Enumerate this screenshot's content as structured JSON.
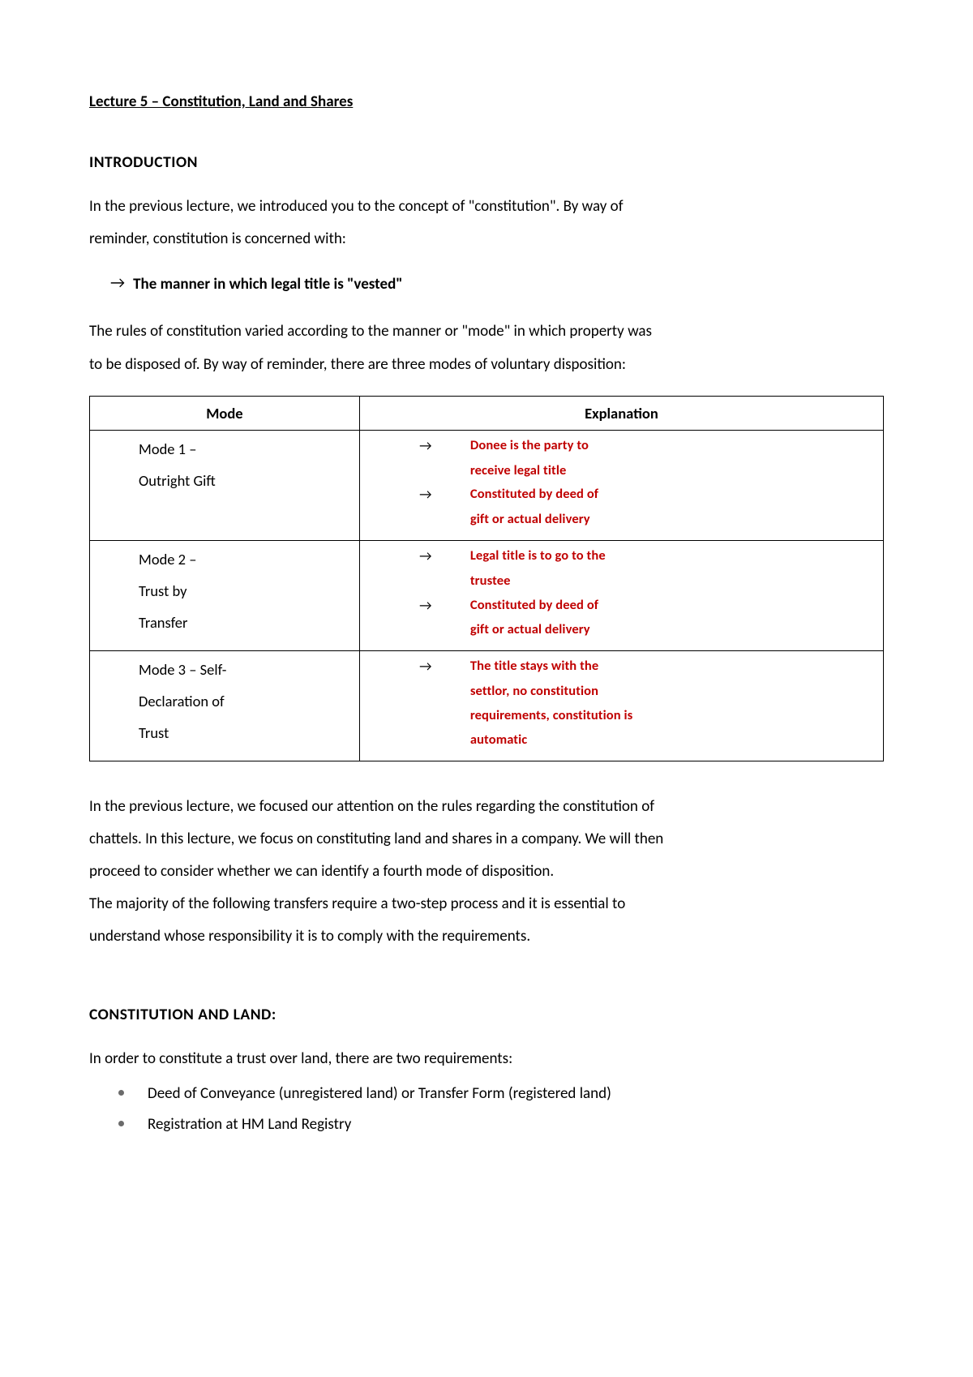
{
  "lecture_title": "Lecture 5 – Constitution, Land and Shares",
  "intro": {
    "heading": "INTRODUCTION",
    "p1a": "In the previous lecture, we introduced you to the concept of \"constitution\". By way of",
    "p1b": "reminder, constitution is concerned with:",
    "arrow_item": "The manner in which legal title is \"vested\"",
    "p2a": "The rules of constitution varied according to the manner or \"mode\" in which property was",
    "p2b": "to be disposed of. By way of reminder, there are three modes of voluntary disposition:"
  },
  "table": {
    "headers": {
      "mode": "Mode",
      "explanation": "Explanation"
    },
    "rows": [
      {
        "mode_l1": "Mode 1 –",
        "mode_l2": "Outright Gift",
        "mode_l3": "",
        "exp": [
          {
            "arrow": true,
            "text": "Donee is the party to"
          },
          {
            "arrow": false,
            "text": "receive legal title"
          },
          {
            "arrow": true,
            "text": "Constituted by deed of"
          },
          {
            "arrow": false,
            "text": "gift or actual delivery"
          }
        ]
      },
      {
        "mode_l1": "Mode 2 –",
        "mode_l2": "Trust by",
        "mode_l3": "Transfer",
        "exp": [
          {
            "arrow": true,
            "text": "Legal title is to go to the"
          },
          {
            "arrow": false,
            "text": "trustee"
          },
          {
            "arrow": true,
            "text": "Constituted by deed of"
          },
          {
            "arrow": false,
            "text": "gift or actual delivery"
          }
        ]
      },
      {
        "mode_l1": "Mode 3 – Self-",
        "mode_l2": "Declaration of",
        "mode_l3": "Trust",
        "exp": [
          {
            "arrow": true,
            "text": "The title stays with the"
          },
          {
            "arrow": false,
            "text": "settlor, no constitution"
          },
          {
            "arrow": false,
            "text": "requirements, constitution is"
          },
          {
            "arrow": false,
            "text": "automatic"
          }
        ]
      }
    ]
  },
  "mid": {
    "p1": "In the previous lecture, we focused our attention on the rules regarding the constitution of",
    "p2": "chattels. In this lecture, we focus on constituting land and shares in a company. We will then",
    "p3": "proceed to consider whether we can identify a fourth mode of disposition.",
    "p4": "The majority of the following transfers require a two-step process and it is essential to",
    "p5": "understand whose responsibility it is to comply with the requirements."
  },
  "land": {
    "heading": "CONSTITUTION AND LAND:",
    "intro": "In order to constitute a trust over land, there are two requirements:",
    "bullets": [
      "Deed of Conveyance (unregistered land) or Transfer Form (registered land)",
      "Registration at HM Land Registry"
    ]
  },
  "colors": {
    "emphasis": "#c00000",
    "text": "#000000",
    "bullet": "#6b6b6b"
  }
}
